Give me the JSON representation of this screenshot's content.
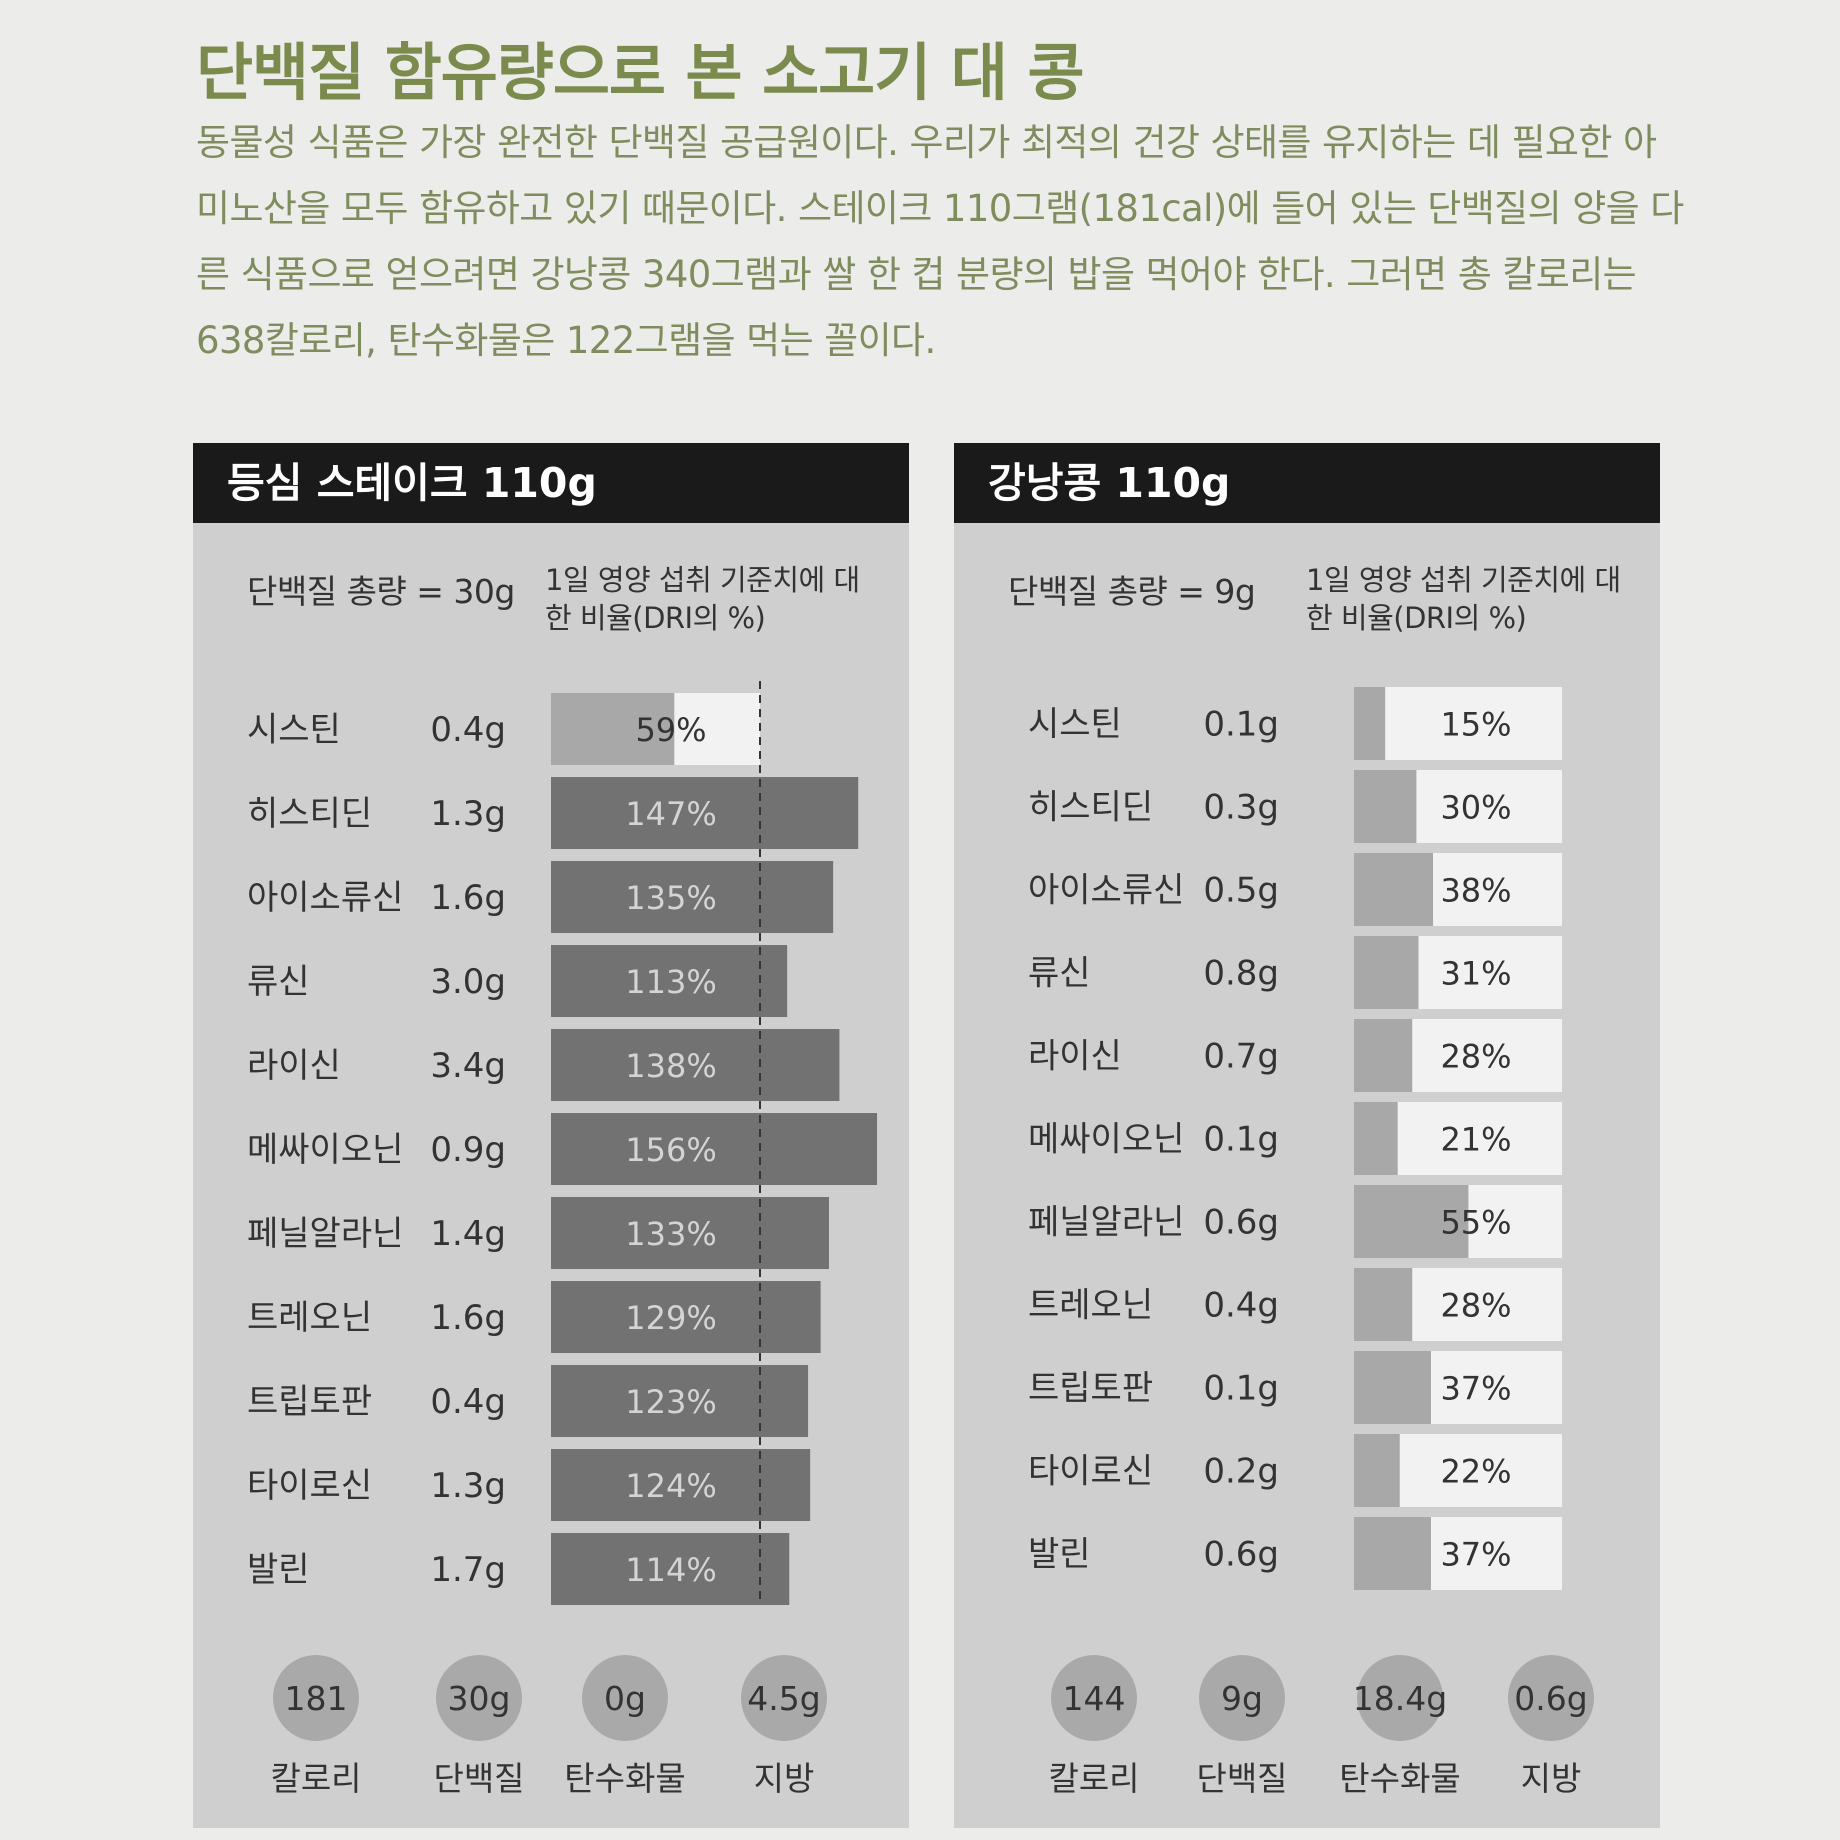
{
  "page": {
    "title": "단백질 함유량으로 본 소고기 대 콩",
    "intro": "동물성 식품은 가장 완전한 단백질 공급원이다. 우리가 최적의 건강 상태를 유지하는 데 필요한 아미노산을 모두 함유하고 있기 때문이다. 스테이크 110그램(181cal)에 들어 있는 단백질의 양을 다른 식품으로 얻으려면 강낭콩 340그램과 쌀 한 컵 분량의 밥을 먹어야 한다. 그러면 총 칼로리는 638칼로리, 탄수화물은 122그램을 먹는 꼴이다."
  },
  "colors": {
    "title_green": "#7b8b4d",
    "text_green": "#7f8c5e",
    "panel_bg": "#cfcfcf",
    "header_bg": "#1a1a1a",
    "bar_dark": "#727272",
    "bar_light": "#a8a8a8",
    "track_white": "#f2f2f2",
    "circle": "#a9a9a9"
  },
  "chart_data": [
    {
      "type": "bar",
      "orientation": "horizontal",
      "title": "등심 스테이크 110g",
      "total_protein_label": "단백질 총량 = 30g",
      "value_axis_label": "1일 영양 섭취 기준치에 대한 비율(DRI의 %)",
      "reference_line": 100,
      "value_unit": "%",
      "categories": [
        "시스틴",
        "히스티딘",
        "아이소류신",
        "류신",
        "라이신",
        "메싸이오닌",
        "페닐알라닌",
        "트레오닌",
        "트립토판",
        "타이로신",
        "발린"
      ],
      "amounts": [
        "0.4g",
        "1.3g",
        "1.6g",
        "3.0g",
        "3.4g",
        "0.9g",
        "1.4g",
        "1.6g",
        "0.4g",
        "1.3g",
        "1.7g"
      ],
      "values": [
        59,
        147,
        135,
        113,
        138,
        156,
        133,
        129,
        123,
        124,
        114
      ],
      "summary": [
        {
          "value": "181",
          "label": "칼로리"
        },
        {
          "value": "30g",
          "label": "단백질"
        },
        {
          "value": "0g",
          "label": "탄수화물"
        },
        {
          "value": "4.5g",
          "label": "지방"
        }
      ]
    },
    {
      "type": "bar",
      "orientation": "horizontal",
      "title": "강낭콩 110g",
      "total_protein_label": "단백질 총량 = 9g",
      "value_axis_label": "1일 영양 섭취 기준치에 대한 비율(DRI의 %)",
      "reference_line": 100,
      "value_unit": "%",
      "categories": [
        "시스틴",
        "히스티딘",
        "아이소류신",
        "류신",
        "라이신",
        "메싸이오닌",
        "페닐알라닌",
        "트레오닌",
        "트립토판",
        "타이로신",
        "발린"
      ],
      "amounts": [
        "0.1g",
        "0.3g",
        "0.5g",
        "0.8g",
        "0.7g",
        "0.1g",
        "0.6g",
        "0.4g",
        "0.1g",
        "0.2g",
        "0.6g"
      ],
      "values": [
        15,
        30,
        38,
        31,
        28,
        21,
        55,
        28,
        37,
        22,
        37
      ],
      "summary": [
        {
          "value": "144",
          "label": "칼로리"
        },
        {
          "value": "9g",
          "label": "단백질"
        },
        {
          "value": "18.4g",
          "label": "탄수화물"
        },
        {
          "value": "0.6g",
          "label": "지방"
        }
      ]
    }
  ]
}
